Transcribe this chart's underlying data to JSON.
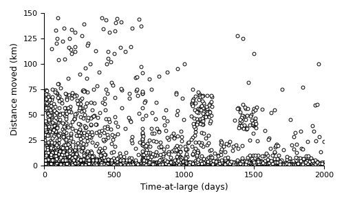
{
  "title": "",
  "xlabel": "Time-at-large (days)",
  "ylabel": "Distance moved (km)",
  "xlim": [
    0,
    2000
  ],
  "ylim": [
    0,
    150
  ],
  "xticks": [
    0,
    500,
    1000,
    1500,
    2000
  ],
  "yticks": [
    0,
    25,
    50,
    75,
    100,
    125,
    150
  ],
  "marker": "o",
  "marker_size": 3.5,
  "marker_facecolor": "white",
  "marker_edgecolor": "black",
  "marker_linewidth": 0.7,
  "background_color": "white",
  "seed": 42
}
